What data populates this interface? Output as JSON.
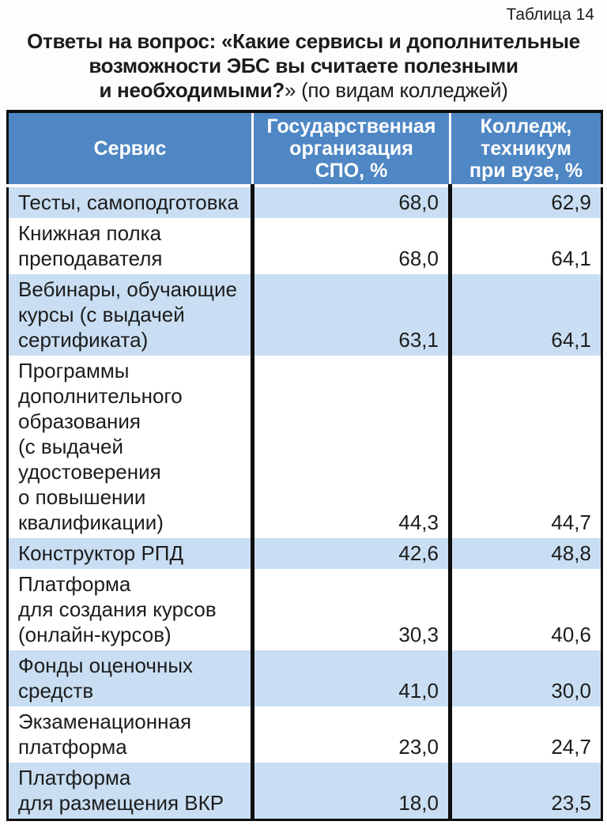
{
  "page": {
    "table_label": "Таблица 14",
    "title": {
      "line1": "Ответы на вопрос: «Какие сервисы и дополнительные",
      "line2": "возможности ЭБС вы считаете полезными",
      "line3_bold": "и необходимыми?",
      "line3_normal": "» (по видам колледжей)"
    }
  },
  "colors": {
    "header_blue": "#4e87c4",
    "row_blue": "#c9def2",
    "border_black": "#0e0e0e",
    "text": "#1c1c1c",
    "header_text": "#ffffff",
    "page_bg": "#fdfdfd"
  },
  "table": {
    "columns": {
      "service": "Сервис",
      "gov_spo": "Государственная\nорганизация\nСПО, %",
      "college_at_university": "Колледж,\nтехникум\nпри вузе, %"
    },
    "rows": [
      {
        "service": "Тесты, самоподготовка",
        "gov_spo": "68,0",
        "college_at_university": "62,9"
      },
      {
        "service": "Книжная полка\nпреподавателя",
        "gov_spo": "68,0",
        "college_at_university": "64,1"
      },
      {
        "service": "Вебинары, обучающие\nкурсы (с выдачей\nсертификата)",
        "gov_spo": "63,1",
        "college_at_university": "64,1"
      },
      {
        "service": "Программы\nдополнительного\nобразования\n(с выдачей\nудостоверения\nо повышении\nквалификации)",
        "gov_spo": "44,3",
        "college_at_university": "44,7"
      },
      {
        "service": "Конструктор РПД",
        "gov_spo": "42,6",
        "college_at_university": "48,8"
      },
      {
        "service": "Платформа\nдля создания курсов\n(онлайн-курсов)",
        "gov_spo": "30,3",
        "college_at_university": "40,6"
      },
      {
        "service": "Фонды оценочных\nсредств",
        "gov_spo": "41,0",
        "college_at_university": "30,0"
      },
      {
        "service": "Экзаменационная\nплатформа",
        "gov_spo": "23,0",
        "college_at_university": "24,7"
      },
      {
        "service": "Платформа\nдля размещения ВКР",
        "gov_spo": "18,0",
        "college_at_university": "23,5"
      }
    ]
  }
}
